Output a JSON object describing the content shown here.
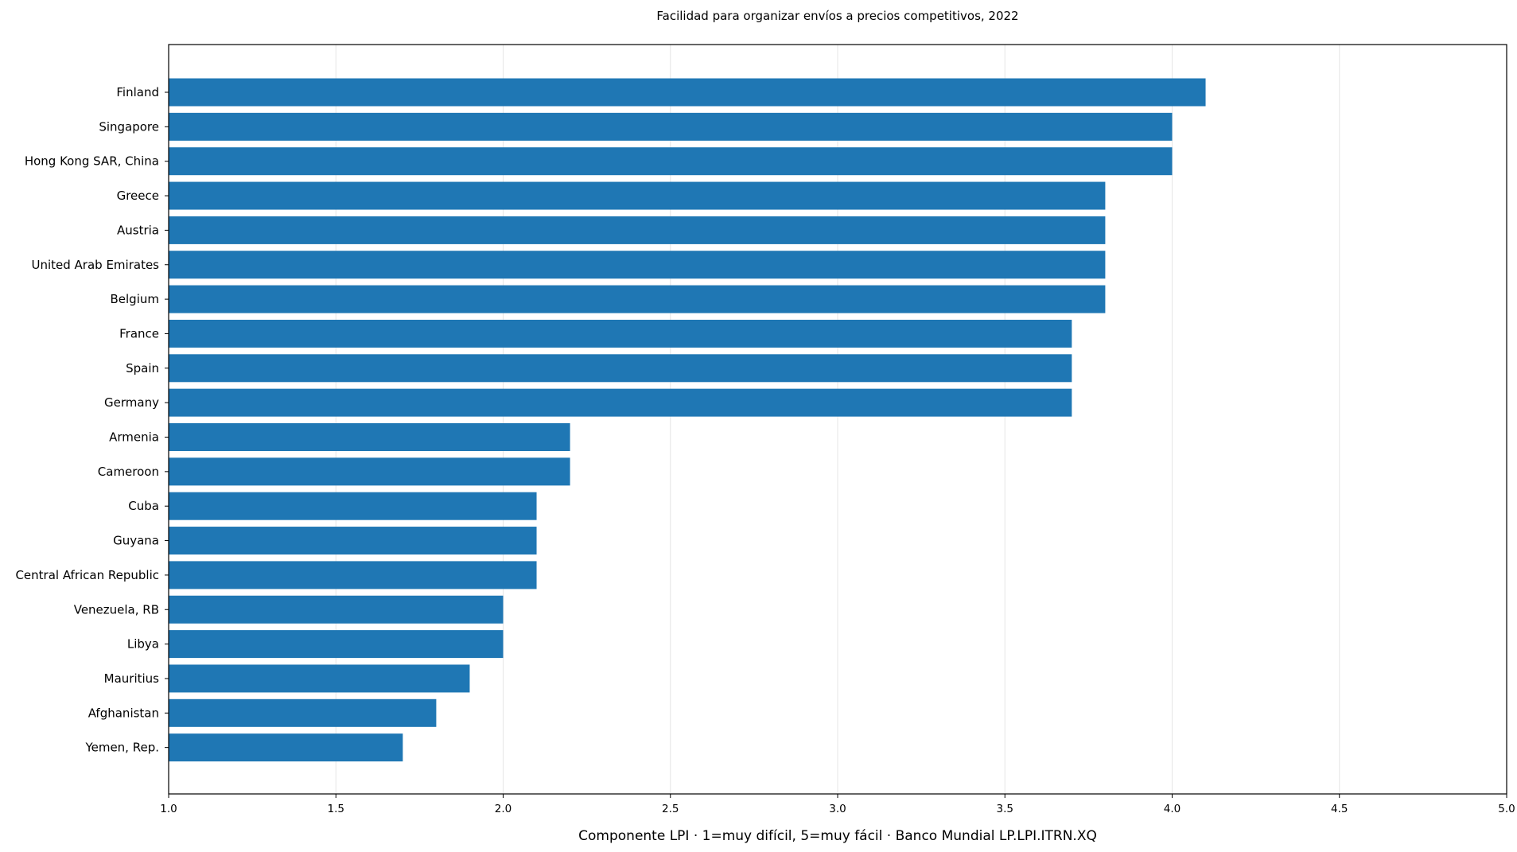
{
  "chart_data": {
    "type": "bar",
    "orientation": "horizontal",
    "title": "Facilidad para organizar envíos a precios competitivos, 2022",
    "xlabel": "Componente LPI · 1=muy difícil, 5=muy fácil · Banco Mundial LP.LPI.ITRN.XQ",
    "ylabel": "",
    "xlim": [
      1.0,
      5.0
    ],
    "xticks": [
      "1.0",
      "1.5",
      "2.0",
      "2.5",
      "3.0",
      "3.5",
      "4.0",
      "4.5",
      "5.0"
    ],
    "grid": "x",
    "bar_color": "#1f77b4",
    "categories": [
      "Finland",
      "Singapore",
      "Hong Kong SAR, China",
      "Greece",
      "Austria",
      "United Arab Emirates",
      "Belgium",
      "France",
      "Spain",
      "Germany",
      "Armenia",
      "Cameroon",
      "Cuba",
      "Guyana",
      "Central African Republic",
      "Venezuela, RB",
      "Libya",
      "Mauritius",
      "Afghanistan",
      "Yemen, Rep."
    ],
    "values": [
      4.1,
      4.0,
      4.0,
      3.8,
      3.8,
      3.8,
      3.8,
      3.7,
      3.7,
      3.7,
      2.2,
      2.2,
      2.1,
      2.1,
      2.1,
      2.0,
      2.0,
      1.9,
      1.8,
      1.7
    ]
  }
}
